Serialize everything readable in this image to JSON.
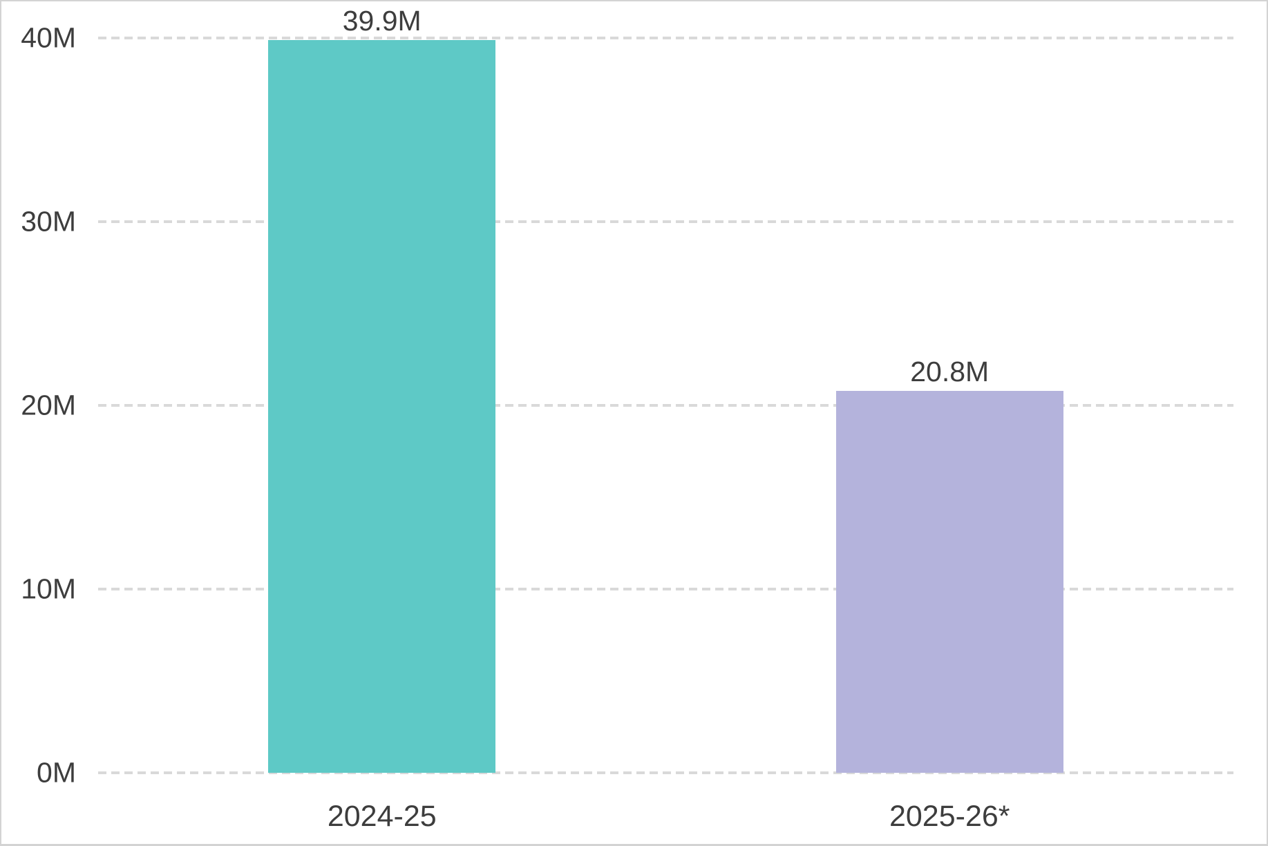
{
  "chart_data": {
    "type": "bar",
    "categories": [
      "2024-25",
      "2025-26*"
    ],
    "values": [
      39.9,
      20.8
    ],
    "value_labels": [
      "39.9M",
      "20.8M"
    ],
    "series": [
      {
        "name": "2024-25",
        "value": 39.9,
        "label": "39.9M",
        "color": "#5ec9c6"
      },
      {
        "name": "2025-26*",
        "value": 20.8,
        "label": "20.8M",
        "color": "#b4b3dc"
      }
    ],
    "bar_colors": [
      "#5ec9c6",
      "#b4b3dc"
    ],
    "title": "",
    "xlabel": "",
    "ylabel": "",
    "ylim": [
      0,
      40
    ],
    "yticks": [
      {
        "value": 0,
        "label": "0M"
      },
      {
        "value": 10,
        "label": "10M"
      },
      {
        "value": 20,
        "label": "20M"
      },
      {
        "value": 30,
        "label": "30M"
      },
      {
        "value": 40,
        "label": "40M"
      }
    ],
    "grid": "horizontal-dashed",
    "legend": "none"
  },
  "colors": {
    "bar_2024_25": "#5ec9c6",
    "bar_2025_26": "#b4b3dc",
    "text": "#3d3d3d",
    "gridline": "#d9d9d9",
    "frame_border": "#d3d3d3",
    "background": "#ffffff"
  }
}
